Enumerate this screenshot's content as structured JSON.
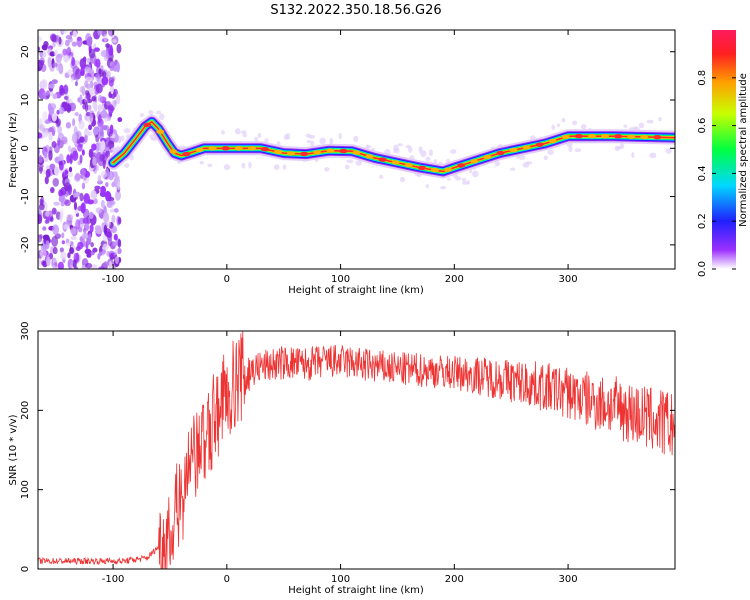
{
  "title": "S132.2022.350.18.56.G26",
  "chart_data": [
    {
      "type": "heatmap",
      "xlabel": "Height of straight line (km)",
      "ylabel": "Frequency (Hz)",
      "xlim": [
        -166,
        394
      ],
      "ylim": [
        -25,
        24.5
      ],
      "xticks": [
        -100,
        0,
        100,
        200,
        300
      ],
      "yticks": [
        -20,
        -10,
        0,
        10,
        20
      ],
      "colorbar": {
        "label": "Normalized spectral amplitude",
        "range": [
          0,
          1
        ],
        "ticks": [
          "0.0",
          "0.2",
          "0.4",
          "0.6",
          "0.8"
        ]
      },
      "ridge": {
        "x": [
          -100,
          -90,
          -80,
          -72,
          -66,
          -60,
          -52,
          -46,
          -40,
          -30,
          -20,
          0,
          30,
          50,
          70,
          90,
          110,
          130,
          150,
          170,
          190,
          200,
          220,
          240,
          260,
          280,
          300,
          340,
          394
        ],
        "y": [
          -3,
          -1,
          2,
          4.5,
          5.5,
          4,
          1,
          -1,
          -1.5,
          -0.8,
          0,
          0,
          0,
          -1,
          -1.2,
          -0.5,
          -0.6,
          -2,
          -3,
          -4,
          -4.8,
          -4,
          -2.5,
          -1,
          0,
          1,
          2.5,
          2.5,
          2.2
        ]
      }
    },
    {
      "type": "line",
      "xlabel": "Height of straight line (km)",
      "ylabel": "SNR (10 * v/v)",
      "xlim": [
        -166,
        394
      ],
      "ylim": [
        0,
        300
      ],
      "xticks": [
        -100,
        0,
        100,
        200,
        300
      ],
      "yticks": [
        0,
        100,
        200,
        300
      ],
      "color": "#ee3333",
      "series": [
        {
          "x": [
            -166,
            -120,
            -90,
            -70,
            -55,
            -45,
            -35,
            -25,
            -15,
            -10,
            0,
            10,
            20,
            30,
            50,
            70,
            90,
            110,
            130,
            150,
            180,
            210,
            240,
            270,
            300,
            320,
            340,
            360,
            380,
            394
          ],
          "values": [
            10,
            10,
            10,
            14,
            35,
            70,
            110,
            150,
            170,
            190,
            220,
            240,
            250,
            255,
            260,
            258,
            262,
            260,
            255,
            252,
            250,
            246,
            240,
            232,
            222,
            212,
            205,
            195,
            185,
            180
          ]
        }
      ]
    }
  ]
}
